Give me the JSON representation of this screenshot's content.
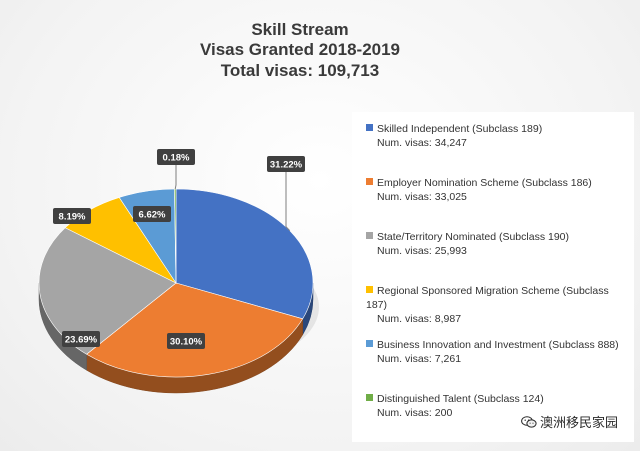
{
  "header": {
    "title": "Skill Stream",
    "subtitle": "Visas Granted 2018-2019",
    "total": "Total visas: 109,713"
  },
  "chart_data": {
    "type": "pie",
    "title": "Skill Stream",
    "subtitle": "Visas Granted 2018-2019",
    "total_label": "Total visas: 109,713",
    "legend_position": "right",
    "series": [
      {
        "name": "Skilled Independent (Subclass 189)",
        "value": 34247,
        "count_text": "Num. visas: 34,247",
        "percent_label": "31.22%",
        "color": "#4472c4"
      },
      {
        "name": "Employer Nomination Scheme (Subclass 186)",
        "value": 33025,
        "count_text": "Num. visas: 33,025",
        "percent_label": "30.10%",
        "color": "#ed7d31"
      },
      {
        "name": "State/Territory Nominated (Subclass 190)",
        "value": 25993,
        "count_text": "Num. visas: 25,993",
        "percent_label": "23.69%",
        "color": "#a5a5a5"
      },
      {
        "name": "Regional Sponsored Migration Scheme (Subclass 187)",
        "value": 8987,
        "count_text": "Num. visas: 8,987",
        "percent_label": "8.19%",
        "color": "#ffc000"
      },
      {
        "name": "Business Innovation and Investment (Subclass 888)",
        "value": 7261,
        "count_text": "Num. visas: 7,261",
        "percent_label": "6.62%",
        "color": "#5b9bd5"
      },
      {
        "name": "Distinguished Talent (Subclass 124)",
        "value": 200,
        "count_text": "Num. visas: 200",
        "percent_label": "0.18%",
        "color": "#70ad47"
      }
    ]
  },
  "watermark": {
    "text": "澳洲移民家园",
    "icon": "wechat-icon"
  }
}
